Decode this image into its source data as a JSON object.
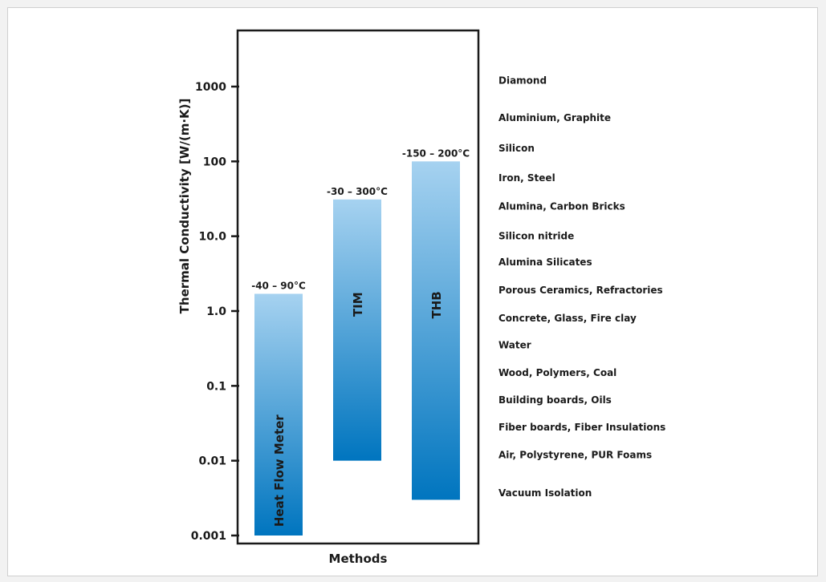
{
  "chart_data": {
    "type": "bar",
    "xlabel": "Methods",
    "ylabel": "Thermal Conductivity [W/(m·K)]",
    "y_scale": "log",
    "ylim": [
      0.001,
      1000
    ],
    "y_ticks": [
      {
        "value": 0.001,
        "label": "0.001"
      },
      {
        "value": 0.01,
        "label": "0.01"
      },
      {
        "value": 0.1,
        "label": "0.1"
      },
      {
        "value": 1,
        "label": "1.0"
      },
      {
        "value": 10,
        "label": "10.0"
      },
      {
        "value": 100,
        "label": "100"
      },
      {
        "value": 1000,
        "label": "1000"
      }
    ],
    "bars": [
      {
        "name": "Heat Flow Meter",
        "low": 0.001,
        "high": 1.7,
        "temperature_range": "-40 – 90°C"
      },
      {
        "name": "TIM",
        "low": 0.01,
        "high": 31,
        "temperature_range": "-30 – 300°C"
      },
      {
        "name": "THB",
        "low": 0.003,
        "high": 100,
        "temperature_range": "-150 – 200°C"
      }
    ],
    "materials": [
      {
        "label": "Diamond",
        "value": 1200
      },
      {
        "label": "Aluminium, Graphite",
        "value": 380
      },
      {
        "label": "Silicon",
        "value": 150
      },
      {
        "label": "Iron, Steel",
        "value": 60
      },
      {
        "label": "Alumina, Carbon Bricks",
        "value": 25
      },
      {
        "label": "Silicon nitride",
        "value": 10
      },
      {
        "label": "Alumina Silicates",
        "value": 4.5
      },
      {
        "label": "Porous Ceramics, Refractories",
        "value": 1.9
      },
      {
        "label": "Concrete, Glass, Fire clay",
        "value": 0.8
      },
      {
        "label": "Water",
        "value": 0.35
      },
      {
        "label": "Wood, Polymers, Coal",
        "value": 0.15
      },
      {
        "label": "Building boards, Oils",
        "value": 0.065
      },
      {
        "label": "Fiber boards, Fiber Insulations",
        "value": 0.028
      },
      {
        "label": "Air, Polystyrene, PUR Foams",
        "value": 0.012
      },
      {
        "label": "Vacuum Isolation",
        "value": 0.0037
      }
    ],
    "colors": {
      "bar_top": "#a6d2f0",
      "bar_bottom": "#0075bf",
      "axis": "#1a1a1a"
    }
  }
}
